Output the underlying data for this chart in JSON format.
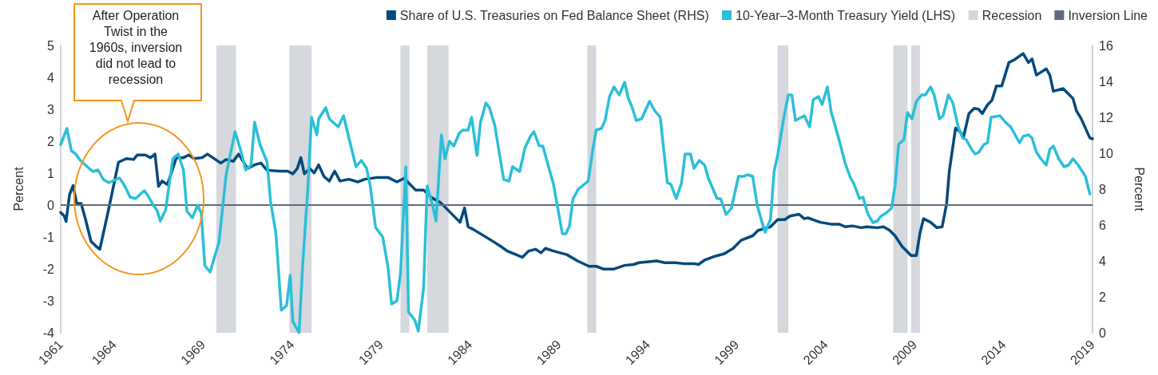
{
  "chart_data": {
    "type": "line",
    "ylabel": "Percent",
    "y2label": "Percent",
    "annotations": [
      "After Operation Twist in the 1960s, inversion did not lead to recession"
    ],
    "xlim": [
      1961,
      2019
    ],
    "xticks": [
      1961,
      1964,
      1969,
      1974,
      1979,
      1984,
      1989,
      1994,
      1999,
      2004,
      2009,
      2014,
      2019
    ],
    "ylim": [
      -4,
      5
    ],
    "yticks": [
      -4,
      -3,
      -2,
      -1,
      0,
      1,
      2,
      3,
      4,
      5
    ],
    "y2lim": [
      0,
      16
    ],
    "y2ticks": [
      0,
      2,
      4,
      6,
      8,
      10,
      12,
      14,
      16
    ],
    "grid": false,
    "legend": "top right",
    "marker": "none",
    "line_style": "solid",
    "series": [
      {
        "name": "Share of U.S. Treasuries on Fed Balance Sheet (RHS)",
        "color": "#004a7c",
        "axis": "y2",
        "x": [
          1961.0,
          1961.2,
          1961.3,
          1961.5,
          1961.7,
          1961.9,
          1962.15,
          1962.4,
          1962.7,
          1963.0,
          1963.2,
          1963.7,
          1964.25,
          1964.7,
          1965.1,
          1965.3,
          1965.75,
          1966.05,
          1966.3,
          1966.5,
          1966.7,
          1967.0,
          1967.5,
          1967.9,
          1968.2,
          1968.5,
          1968.95,
          1969.25,
          1970.0,
          1970.3,
          1970.7,
          1971.0,
          1971.5,
          1971.9,
          1972.25,
          1972.6,
          1973.3,
          1973.75,
          1974.05,
          1974.3,
          1974.5,
          1974.7,
          1975.0,
          1975.25,
          1975.5,
          1975.8,
          1976.1,
          1976.4,
          1976.7,
          1977.2,
          1977.7,
          1978.1,
          1978.8,
          1979.4,
          1979.9,
          1980.3,
          1980.95,
          1981.4,
          1981.8,
          1982.35,
          1982.85,
          1983.45,
          1983.7,
          1983.9,
          1984.2,
          1984.7,
          1985.2,
          1985.75,
          1986.1,
          1986.6,
          1986.95,
          1987.3,
          1987.7,
          1988.0,
          1988.25,
          1988.7,
          1989.45,
          1990.05,
          1990.7,
          1991.1,
          1991.5,
          1992.1,
          1992.7,
          1993.2,
          1993.5,
          1994.5,
          1994.95,
          1995.55,
          1996.0,
          1996.6,
          1996.85,
          1997.2,
          1997.75,
          1998.3,
          1998.8,
          1999.25,
          1999.9,
          2000.2,
          2000.9,
          2001.3,
          2001.7,
          2002.0,
          2002.5,
          2002.8,
          2003.0,
          2003.7,
          2004.3,
          2004.75,
          2005.1,
          2005.5,
          2006.0,
          2006.3,
          2006.9,
          2007.25,
          2007.6,
          2007.9,
          2008.3,
          2008.6,
          2008.8,
          2009.1,
          2009.3,
          2009.5,
          2009.9,
          2010.25,
          2010.55,
          2010.8,
          2010.95,
          2011.3,
          2011.6,
          2011.75,
          2012.05,
          2012.35,
          2012.6,
          2012.8,
          2013.1,
          2013.35,
          2013.6,
          2013.9,
          2014.3,
          2014.6,
          2015.1,
          2015.4,
          2015.6,
          2015.85,
          2016.4,
          2016.6,
          2016.8,
          2017.35,
          2017.9,
          2018.1,
          2018.35,
          2018.85,
          2019.0
        ],
        "values": [
          6.7,
          6.5,
          6.2,
          7.7,
          8.2,
          7.2,
          7.2,
          6.3,
          5.1,
          4.8,
          4.65,
          6.9,
          9.5,
          9.7,
          9.65,
          9.9,
          9.9,
          9.75,
          9.95,
          8.15,
          8.45,
          8.25,
          9.75,
          9.75,
          9.9,
          9.7,
          9.75,
          9.95,
          9.45,
          9.65,
          9.55,
          9.95,
          9.15,
          9.35,
          9.45,
          9.05,
          9.0,
          9.0,
          8.85,
          9.15,
          9.75,
          8.85,
          9.15,
          8.9,
          9.35,
          8.7,
          8.45,
          9.0,
          8.45,
          8.55,
          8.4,
          8.55,
          8.65,
          8.65,
          8.4,
          8.6,
          7.95,
          7.95,
          7.55,
          7.25,
          6.75,
          6.15,
          6.95,
          5.9,
          5.75,
          5.45,
          5.15,
          4.8,
          4.55,
          4.35,
          4.2,
          4.55,
          4.65,
          4.45,
          4.7,
          4.55,
          4.35,
          4.0,
          3.7,
          3.7,
          3.55,
          3.55,
          3.75,
          3.8,
          3.9,
          4.0,
          3.9,
          3.9,
          3.85,
          3.85,
          3.8,
          4.05,
          4.25,
          4.4,
          4.7,
          5.15,
          5.4,
          5.7,
          5.9,
          6.3,
          6.3,
          6.5,
          6.6,
          6.35,
          6.4,
          6.15,
          6.05,
          6.05,
          5.9,
          5.95,
          5.85,
          5.9,
          5.85,
          5.9,
          5.7,
          5.4,
          4.8,
          4.5,
          4.3,
          4.3,
          5.55,
          6.35,
          6.15,
          5.85,
          5.9,
          7.2,
          9.0,
          11.4,
          11.15,
          10.9,
          12.2,
          12.5,
          12.45,
          12.2,
          12.7,
          12.95,
          13.75,
          13.75,
          15.05,
          15.2,
          15.55,
          15.05,
          15.25,
          14.35,
          14.7,
          14.35,
          13.45,
          13.6,
          13.05,
          12.35,
          11.95,
          10.85,
          10.8
        ]
      },
      {
        "name": "10-Year–3-Month Treasury Yield (LHS)",
        "color": "#2bbfd9",
        "x": [
          1961.0,
          1961.35,
          1961.6,
          1961.85,
          1962.1,
          1962.5,
          1962.8,
          1963.1,
          1963.4,
          1963.7,
          1964.3,
          1964.6,
          1964.9,
          1965.2,
          1965.7,
          1965.9,
          1966.2,
          1966.4,
          1966.6,
          1966.9,
          1967.3,
          1967.6,
          1967.9,
          1968.1,
          1968.4,
          1968.7,
          1968.9,
          1969.1,
          1969.4,
          1969.9,
          1970.3,
          1970.8,
          1971.1,
          1971.4,
          1971.7,
          1971.9,
          1972.2,
          1972.6,
          1972.8,
          1973.1,
          1973.4,
          1973.7,
          1973.9,
          1974.05,
          1974.4,
          1974.6,
          1974.9,
          1975.1,
          1975.4,
          1975.5,
          1975.9,
          1976.1,
          1976.6,
          1976.9,
          1977.2,
          1977.6,
          1977.9,
          1978.2,
          1978.4,
          1978.7,
          1979.1,
          1979.4,
          1979.6,
          1979.9,
          1980.1,
          1980.4,
          1980.55,
          1980.9,
          1981.1,
          1981.4,
          1981.6,
          1981.9,
          1982.1,
          1982.4,
          1982.6,
          1982.85,
          1983.1,
          1983.4,
          1983.6,
          1983.9,
          1984.1,
          1984.4,
          1984.6,
          1984.9,
          1985.1,
          1985.4,
          1985.9,
          1986.2,
          1986.4,
          1986.8,
          1987.1,
          1987.4,
          1987.6,
          1987.9,
          1988.1,
          1988.7,
          1989.2,
          1989.4,
          1989.6,
          1989.8,
          1990.1,
          1990.65,
          1990.9,
          1991.1,
          1991.4,
          1991.6,
          1991.85,
          1992.1,
          1992.4,
          1992.7,
          1992.9,
          1993.1,
          1993.35,
          1993.65,
          1994.1,
          1994.4,
          1994.7,
          1995.1,
          1995.3,
          1995.6,
          1995.9,
          1996.1,
          1996.4,
          1996.6,
          1996.9,
          1997.2,
          1997.4,
          1997.9,
          1998.1,
          1998.4,
          1998.7,
          1999.1,
          1999.4,
          1999.6,
          1999.9,
          2000.15,
          2000.4,
          2000.6,
          2000.9,
          2001.1,
          2001.3,
          2001.65,
          2001.9,
          2002.1,
          2002.3,
          2002.8,
          2003.1,
          2003.3,
          2003.6,
          2003.8,
          2004.1,
          2004.3,
          2004.6,
          2004.8,
          2005.1,
          2005.4,
          2005.6,
          2005.9,
          2006.1,
          2006.35,
          2006.65,
          2006.9,
          2007.1,
          2007.4,
          2007.7,
          2007.9,
          2008.1,
          2008.4,
          2008.6,
          2008.85,
          2009.1,
          2009.4,
          2009.6,
          2009.9,
          2010.1,
          2010.4,
          2010.6,
          2010.9,
          2011.15,
          2011.45,
          2011.7,
          2011.9,
          2012.2,
          2012.4,
          2012.6,
          2012.9,
          2013.1,
          2013.3,
          2013.8,
          2014.1,
          2014.4,
          2014.65,
          2014.9,
          2015.1,
          2015.4,
          2015.6,
          2015.85,
          2016.1,
          2016.4,
          2016.6,
          2016.8,
          2017.1,
          2017.4,
          2017.65,
          2017.9,
          2018.2,
          2018.6,
          2018.85
        ],
        "values": [
          1.9,
          2.4,
          1.7,
          1.6,
          1.4,
          1.2,
          1.05,
          1.1,
          0.8,
          0.7,
          0.85,
          0.6,
          0.25,
          0.2,
          0.45,
          0.3,
          0.0,
          -0.15,
          -0.5,
          -0.15,
          1.45,
          1.6,
          1.1,
          -0.2,
          -0.4,
          0.0,
          -0.25,
          -1.9,
          -2.1,
          -1.15,
          0.95,
          2.3,
          1.75,
          1.1,
          1.25,
          2.6,
          1.9,
          1.35,
          0.1,
          -0.9,
          -3.3,
          -3.15,
          -2.2,
          -3.65,
          -4.0,
          -1.9,
          0.6,
          2.75,
          2.2,
          2.7,
          3.05,
          2.7,
          2.45,
          2.8,
          2.1,
          1.2,
          1.4,
          1.15,
          0.6,
          -0.7,
          -1.0,
          -1.95,
          -3.1,
          -3.0,
          -2.15,
          1.2,
          -3.35,
          -3.6,
          -3.95,
          -2.6,
          0.6,
          0.0,
          -0.5,
          2.2,
          1.45,
          2.0,
          1.85,
          2.25,
          2.35,
          2.35,
          2.75,
          1.55,
          2.6,
          3.2,
          3.05,
          2.5,
          0.8,
          0.75,
          1.2,
          1.05,
          1.8,
          2.15,
          2.3,
          1.85,
          1.85,
          0.65,
          -0.9,
          -0.9,
          -0.65,
          0.2,
          0.5,
          0.75,
          1.7,
          2.35,
          2.4,
          2.65,
          3.4,
          3.7,
          3.45,
          3.85,
          3.35,
          3.1,
          2.65,
          2.7,
          3.25,
          2.95,
          2.75,
          0.7,
          0.65,
          0.2,
          0.7,
          1.6,
          1.6,
          1.15,
          1.4,
          1.25,
          0.85,
          0.2,
          0.2,
          -0.3,
          -0.1,
          0.9,
          0.9,
          0.95,
          0.9,
          0.0,
          -0.5,
          -0.85,
          -0.45,
          1.05,
          1.55,
          2.75,
          3.45,
          3.45,
          2.65,
          2.8,
          2.45,
          3.3,
          3.4,
          3.15,
          3.7,
          2.95,
          2.35,
          1.95,
          1.3,
          0.85,
          0.65,
          0.2,
          0.25,
          -0.25,
          -0.55,
          -0.5,
          -0.35,
          -0.25,
          -0.1,
          0.6,
          1.9,
          2.05,
          2.9,
          2.7,
          3.25,
          3.45,
          3.45,
          3.7,
          3.45,
          2.7,
          2.8,
          3.45,
          3.2,
          2.45,
          2.1,
          2.05,
          1.75,
          1.6,
          1.65,
          1.9,
          1.95,
          2.75,
          2.8,
          2.6,
          2.45,
          2.2,
          1.95,
          2.15,
          2.2,
          2.1,
          1.65,
          1.45,
          1.25,
          1.75,
          1.85,
          1.45,
          1.2,
          1.25,
          1.45,
          1.25,
          0.9,
          0.35
        ]
      }
    ],
    "bands": [
      {
        "axis": "x",
        "from": 1969.75,
        "to": 1970.85,
        "label": "Recession",
        "color": "#d5d8dd"
      },
      {
        "axis": "x",
        "from": 1973.85,
        "to": 1975.1,
        "color": "#d5d8dd"
      },
      {
        "axis": "x",
        "from": 1980.1,
        "to": 1980.6,
        "color": "#d5d8dd"
      },
      {
        "axis": "x",
        "from": 1981.6,
        "to": 1982.8,
        "color": "#d5d8dd"
      },
      {
        "axis": "x",
        "from": 1990.6,
        "to": 1991.1,
        "color": "#d5d8dd"
      },
      {
        "axis": "x",
        "from": 2001.3,
        "to": 2001.9,
        "color": "#d5d8dd"
      },
      {
        "axis": "x",
        "from": 2007.8,
        "to": 2008.6,
        "color": "#d5d8dd"
      },
      {
        "axis": "x",
        "from": 2008.8,
        "to": 2009.3,
        "color": "#d5d8dd"
      }
    ],
    "ref_lines": [
      {
        "axis": "y",
        "value": 0,
        "label": "Inversion Line",
        "color": "#5f6b7a",
        "line_style": "solid"
      }
    ]
  }
}
